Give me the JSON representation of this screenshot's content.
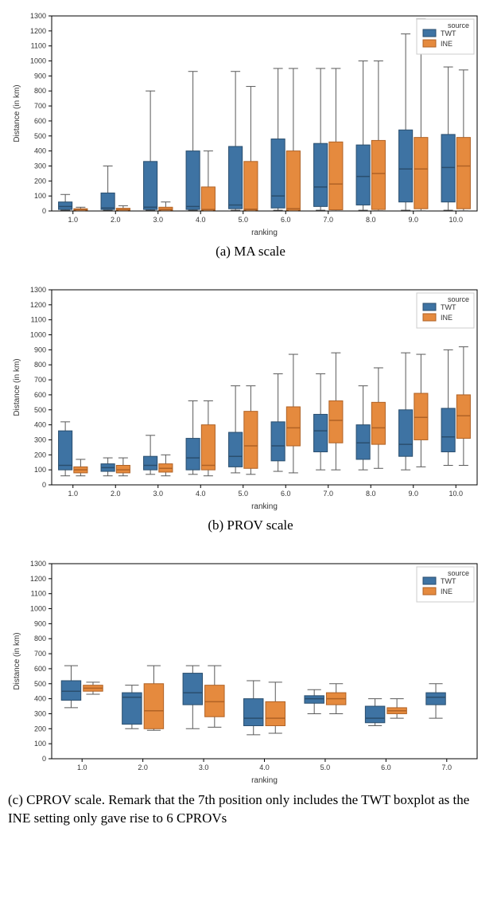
{
  "colors": {
    "twt_fill": "#3e73a3",
    "twt_edge": "#2a4e6e",
    "ine_fill": "#e58a3e",
    "ine_edge": "#b06225",
    "whisker": "#5a5a5a",
    "axis": "#000000",
    "tick": "#333333",
    "bg": "#ffffff"
  },
  "legend": {
    "title": "source",
    "items": [
      "TWT",
      "INE"
    ]
  },
  "chart_a": {
    "caption": "(a) MA scale",
    "xlabel": "ranking",
    "ylabel": "Distance (in km)",
    "ylim": [
      0,
      1300
    ],
    "ytick_step": 100,
    "xcats": [
      "1.0",
      "2.0",
      "3.0",
      "4.0",
      "5.0",
      "6.0",
      "7.0",
      "8.0",
      "9.0",
      "10.0"
    ],
    "series": {
      "TWT": [
        {
          "wlo": 5,
          "q1": 10,
          "med": 30,
          "q3": 60,
          "whi": 110
        },
        {
          "wlo": 5,
          "q1": 10,
          "med": 20,
          "q3": 120,
          "whi": 300
        },
        {
          "wlo": 5,
          "q1": 10,
          "med": 25,
          "q3": 330,
          "whi": 800
        },
        {
          "wlo": 5,
          "q1": 10,
          "med": 30,
          "q3": 400,
          "whi": 930
        },
        {
          "wlo": 5,
          "q1": 15,
          "med": 40,
          "q3": 430,
          "whi": 930
        },
        {
          "wlo": 5,
          "q1": 20,
          "med": 100,
          "q3": 480,
          "whi": 950
        },
        {
          "wlo": 5,
          "q1": 30,
          "med": 160,
          "q3": 450,
          "whi": 950
        },
        {
          "wlo": 5,
          "q1": 40,
          "med": 230,
          "q3": 440,
          "whi": 1000
        },
        {
          "wlo": 5,
          "q1": 60,
          "med": 280,
          "q3": 540,
          "whi": 1180
        },
        {
          "wlo": 5,
          "q1": 60,
          "med": 290,
          "q3": 510,
          "whi": 960
        }
      ],
      "INE": [
        {
          "wlo": 2,
          "q1": 5,
          "med": 8,
          "q3": 15,
          "whi": 25
        },
        {
          "wlo": 2,
          "q1": 5,
          "med": 8,
          "q3": 18,
          "whi": 35
        },
        {
          "wlo": 2,
          "q1": 5,
          "med": 10,
          "q3": 25,
          "whi": 60
        },
        {
          "wlo": 2,
          "q1": 5,
          "med": 10,
          "q3": 160,
          "whi": 400
        },
        {
          "wlo": 2,
          "q1": 5,
          "med": 12,
          "q3": 330,
          "whi": 830
        },
        {
          "wlo": 2,
          "q1": 5,
          "med": 15,
          "q3": 400,
          "whi": 950
        },
        {
          "wlo": 2,
          "q1": 8,
          "med": 180,
          "q3": 460,
          "whi": 950
        },
        {
          "wlo": 2,
          "q1": 10,
          "med": 250,
          "q3": 470,
          "whi": 1000
        },
        {
          "wlo": 2,
          "q1": 15,
          "med": 280,
          "q3": 490,
          "whi": 1280
        },
        {
          "wlo": 2,
          "q1": 15,
          "med": 300,
          "q3": 490,
          "whi": 940
        }
      ]
    }
  },
  "chart_b": {
    "caption": "(b) PROV scale",
    "xlabel": "ranking",
    "ylabel": "Distance (in km)",
    "ylim": [
      0,
      1300
    ],
    "ytick_step": 100,
    "xcats": [
      "1.0",
      "2.0",
      "3.0",
      "4.0",
      "5.0",
      "6.0",
      "7.0",
      "8.0",
      "9.0",
      "10.0"
    ],
    "series": {
      "TWT": [
        {
          "wlo": 60,
          "q1": 100,
          "med": 130,
          "q3": 360,
          "whi": 420
        },
        {
          "wlo": 60,
          "q1": 90,
          "med": 115,
          "q3": 140,
          "whi": 180
        },
        {
          "wlo": 70,
          "q1": 100,
          "med": 130,
          "q3": 190,
          "whi": 330
        },
        {
          "wlo": 70,
          "q1": 100,
          "med": 180,
          "q3": 310,
          "whi": 560
        },
        {
          "wlo": 80,
          "q1": 120,
          "med": 190,
          "q3": 350,
          "whi": 660
        },
        {
          "wlo": 90,
          "q1": 160,
          "med": 260,
          "q3": 420,
          "whi": 740
        },
        {
          "wlo": 100,
          "q1": 220,
          "med": 360,
          "q3": 470,
          "whi": 740
        },
        {
          "wlo": 100,
          "q1": 170,
          "med": 280,
          "q3": 400,
          "whi": 660
        },
        {
          "wlo": 100,
          "q1": 190,
          "med": 270,
          "q3": 500,
          "whi": 880
        },
        {
          "wlo": 130,
          "q1": 220,
          "med": 320,
          "q3": 510,
          "whi": 900
        }
      ],
      "INE": [
        {
          "wlo": 60,
          "q1": 80,
          "med": 100,
          "q3": 120,
          "whi": 170
        },
        {
          "wlo": 60,
          "q1": 80,
          "med": 100,
          "q3": 130,
          "whi": 180
        },
        {
          "wlo": 60,
          "q1": 85,
          "med": 110,
          "q3": 140,
          "whi": 200
        },
        {
          "wlo": 60,
          "q1": 100,
          "med": 130,
          "q3": 400,
          "whi": 560
        },
        {
          "wlo": 70,
          "q1": 110,
          "med": 260,
          "q3": 490,
          "whi": 660
        },
        {
          "wlo": 80,
          "q1": 260,
          "med": 380,
          "q3": 520,
          "whi": 870
        },
        {
          "wlo": 100,
          "q1": 280,
          "med": 430,
          "q3": 560,
          "whi": 880
        },
        {
          "wlo": 110,
          "q1": 270,
          "med": 380,
          "q3": 550,
          "whi": 780
        },
        {
          "wlo": 120,
          "q1": 300,
          "med": 450,
          "q3": 610,
          "whi": 870
        },
        {
          "wlo": 130,
          "q1": 310,
          "med": 460,
          "q3": 600,
          "whi": 920
        }
      ]
    }
  },
  "chart_c": {
    "caption": "(c) CPROV scale. Remark that the 7th position only includes the TWT boxplot as the INE setting only gave rise to 6 CPROVs",
    "xlabel": "ranking",
    "ylabel": "Distance (in km)",
    "ylim": [
      0,
      1300
    ],
    "ytick_step": 100,
    "xcats": [
      "1.0",
      "2.0",
      "3.0",
      "4.0",
      "5.0",
      "6.0",
      "7.0"
    ],
    "series": {
      "TWT": [
        {
          "wlo": 340,
          "q1": 390,
          "med": 450,
          "q3": 520,
          "whi": 620
        },
        {
          "wlo": 200,
          "q1": 230,
          "med": 410,
          "q3": 440,
          "whi": 490
        },
        {
          "wlo": 200,
          "q1": 360,
          "med": 440,
          "q3": 570,
          "whi": 620
        },
        {
          "wlo": 160,
          "q1": 220,
          "med": 270,
          "q3": 400,
          "whi": 520
        },
        {
          "wlo": 300,
          "q1": 370,
          "med": 400,
          "q3": 420,
          "whi": 460
        },
        {
          "wlo": 220,
          "q1": 240,
          "med": 270,
          "q3": 350,
          "whi": 400
        },
        {
          "wlo": 270,
          "q1": 360,
          "med": 410,
          "q3": 440,
          "whi": 500
        }
      ],
      "INE": [
        {
          "wlo": 430,
          "q1": 450,
          "med": 470,
          "q3": 490,
          "whi": 510
        },
        {
          "wlo": 190,
          "q1": 200,
          "med": 320,
          "q3": 500,
          "whi": 620
        },
        {
          "wlo": 210,
          "q1": 280,
          "med": 380,
          "q3": 490,
          "whi": 620
        },
        {
          "wlo": 170,
          "q1": 220,
          "med": 270,
          "q3": 380,
          "whi": 510
        },
        {
          "wlo": 300,
          "q1": 360,
          "med": 400,
          "q3": 440,
          "whi": 500
        },
        {
          "wlo": 270,
          "q1": 300,
          "med": 320,
          "q3": 340,
          "whi": 400
        }
      ]
    }
  }
}
